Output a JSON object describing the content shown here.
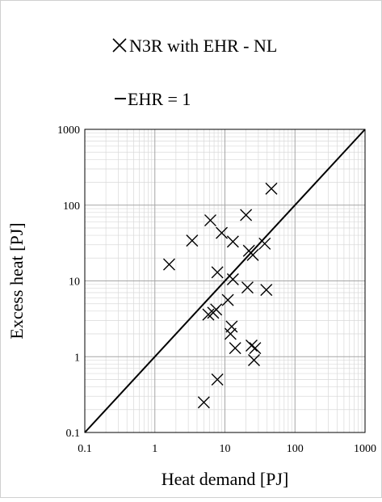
{
  "chart_data": {
    "type": "scatter",
    "x_scale": "log",
    "y_scale": "log",
    "xlim": [
      0.1,
      1000
    ],
    "ylim": [
      0.1,
      1000
    ],
    "xlabel": "Heat demand [PJ]",
    "ylabel": "Excess heat [PJ]",
    "x_tick_labels": [
      "0.1",
      "1",
      "10",
      "100",
      "1000"
    ],
    "y_tick_labels": [
      "0.1",
      "1",
      "10",
      "100",
      "1000"
    ],
    "grid": true,
    "legend_position": "top",
    "series": [
      {
        "name": "N3R with EHR - NL",
        "marker": "x",
        "color": "#000000",
        "points": [
          {
            "x": 1.6,
            "y": 16.5
          },
          {
            "x": 3.4,
            "y": 34
          },
          {
            "x": 5,
            "y": 0.25
          },
          {
            "x": 5.8,
            "y": 3.6
          },
          {
            "x": 6.2,
            "y": 63
          },
          {
            "x": 6.8,
            "y": 3.8
          },
          {
            "x": 7.5,
            "y": 4.2
          },
          {
            "x": 7.8,
            "y": 0.5
          },
          {
            "x": 7.8,
            "y": 13
          },
          {
            "x": 9,
            "y": 43
          },
          {
            "x": 11,
            "y": 5.6
          },
          {
            "x": 12,
            "y": 2
          },
          {
            "x": 12.5,
            "y": 2.5
          },
          {
            "x": 13,
            "y": 10.5
          },
          {
            "x": 13,
            "y": 33
          },
          {
            "x": 14,
            "y": 1.3
          },
          {
            "x": 20,
            "y": 74
          },
          {
            "x": 21,
            "y": 8.2
          },
          {
            "x": 22,
            "y": 25
          },
          {
            "x": 24,
            "y": 1.4
          },
          {
            "x": 25,
            "y": 22
          },
          {
            "x": 26,
            "y": 0.9
          },
          {
            "x": 27,
            "y": 1.3
          },
          {
            "x": 37,
            "y": 31
          },
          {
            "x": 39,
            "y": 7.6
          },
          {
            "x": 46,
            "y": 165
          }
        ]
      },
      {
        "name": "EHR = 1",
        "line": "solid",
        "color": "#000000",
        "points": [
          {
            "x": 0.1,
            "y": 0.1
          },
          {
            "x": 1000,
            "y": 1000
          }
        ]
      }
    ]
  }
}
